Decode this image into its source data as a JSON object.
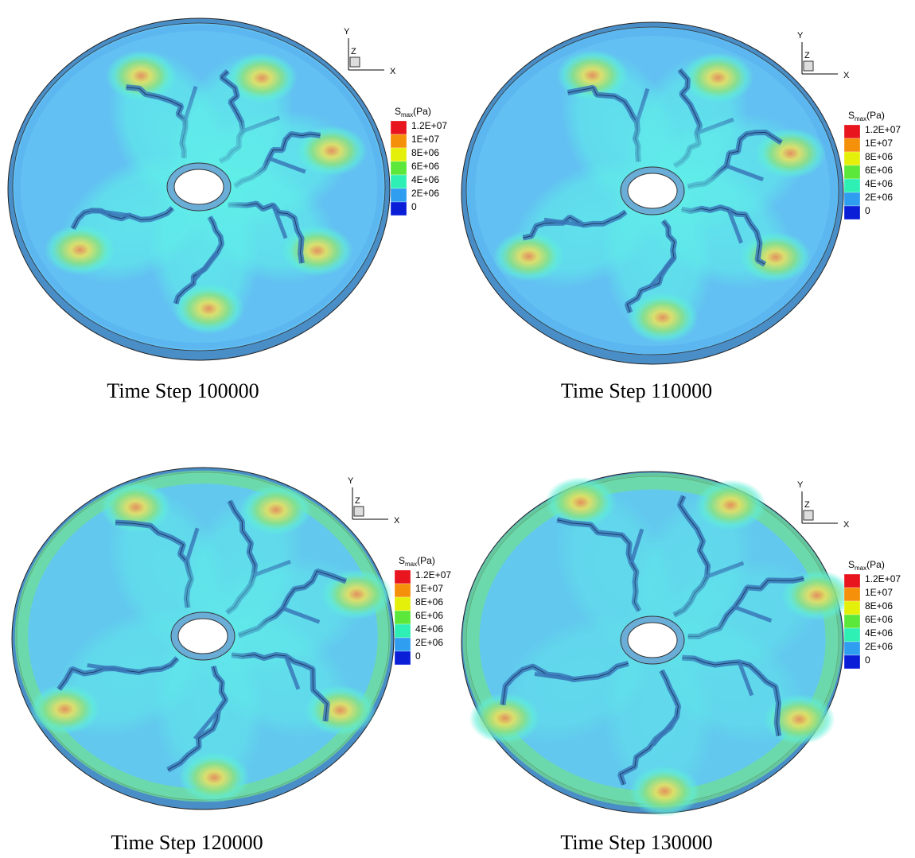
{
  "panels": [
    {
      "caption": "Time Step 100000"
    },
    {
      "caption": "Time Step 110000"
    },
    {
      "caption": "Time Step 120000"
    },
    {
      "caption": "Time Step 130000"
    }
  ],
  "legend": {
    "title": "S",
    "title_sub": "max",
    "title_unit": "(Pa)",
    "labels": [
      "1.2E+07",
      "1E+07",
      "8E+06",
      "6E+06",
      "4E+06",
      "2E+06",
      "0"
    ]
  },
  "axes": {
    "y": "Y",
    "z": "Z",
    "x": "X"
  }
}
